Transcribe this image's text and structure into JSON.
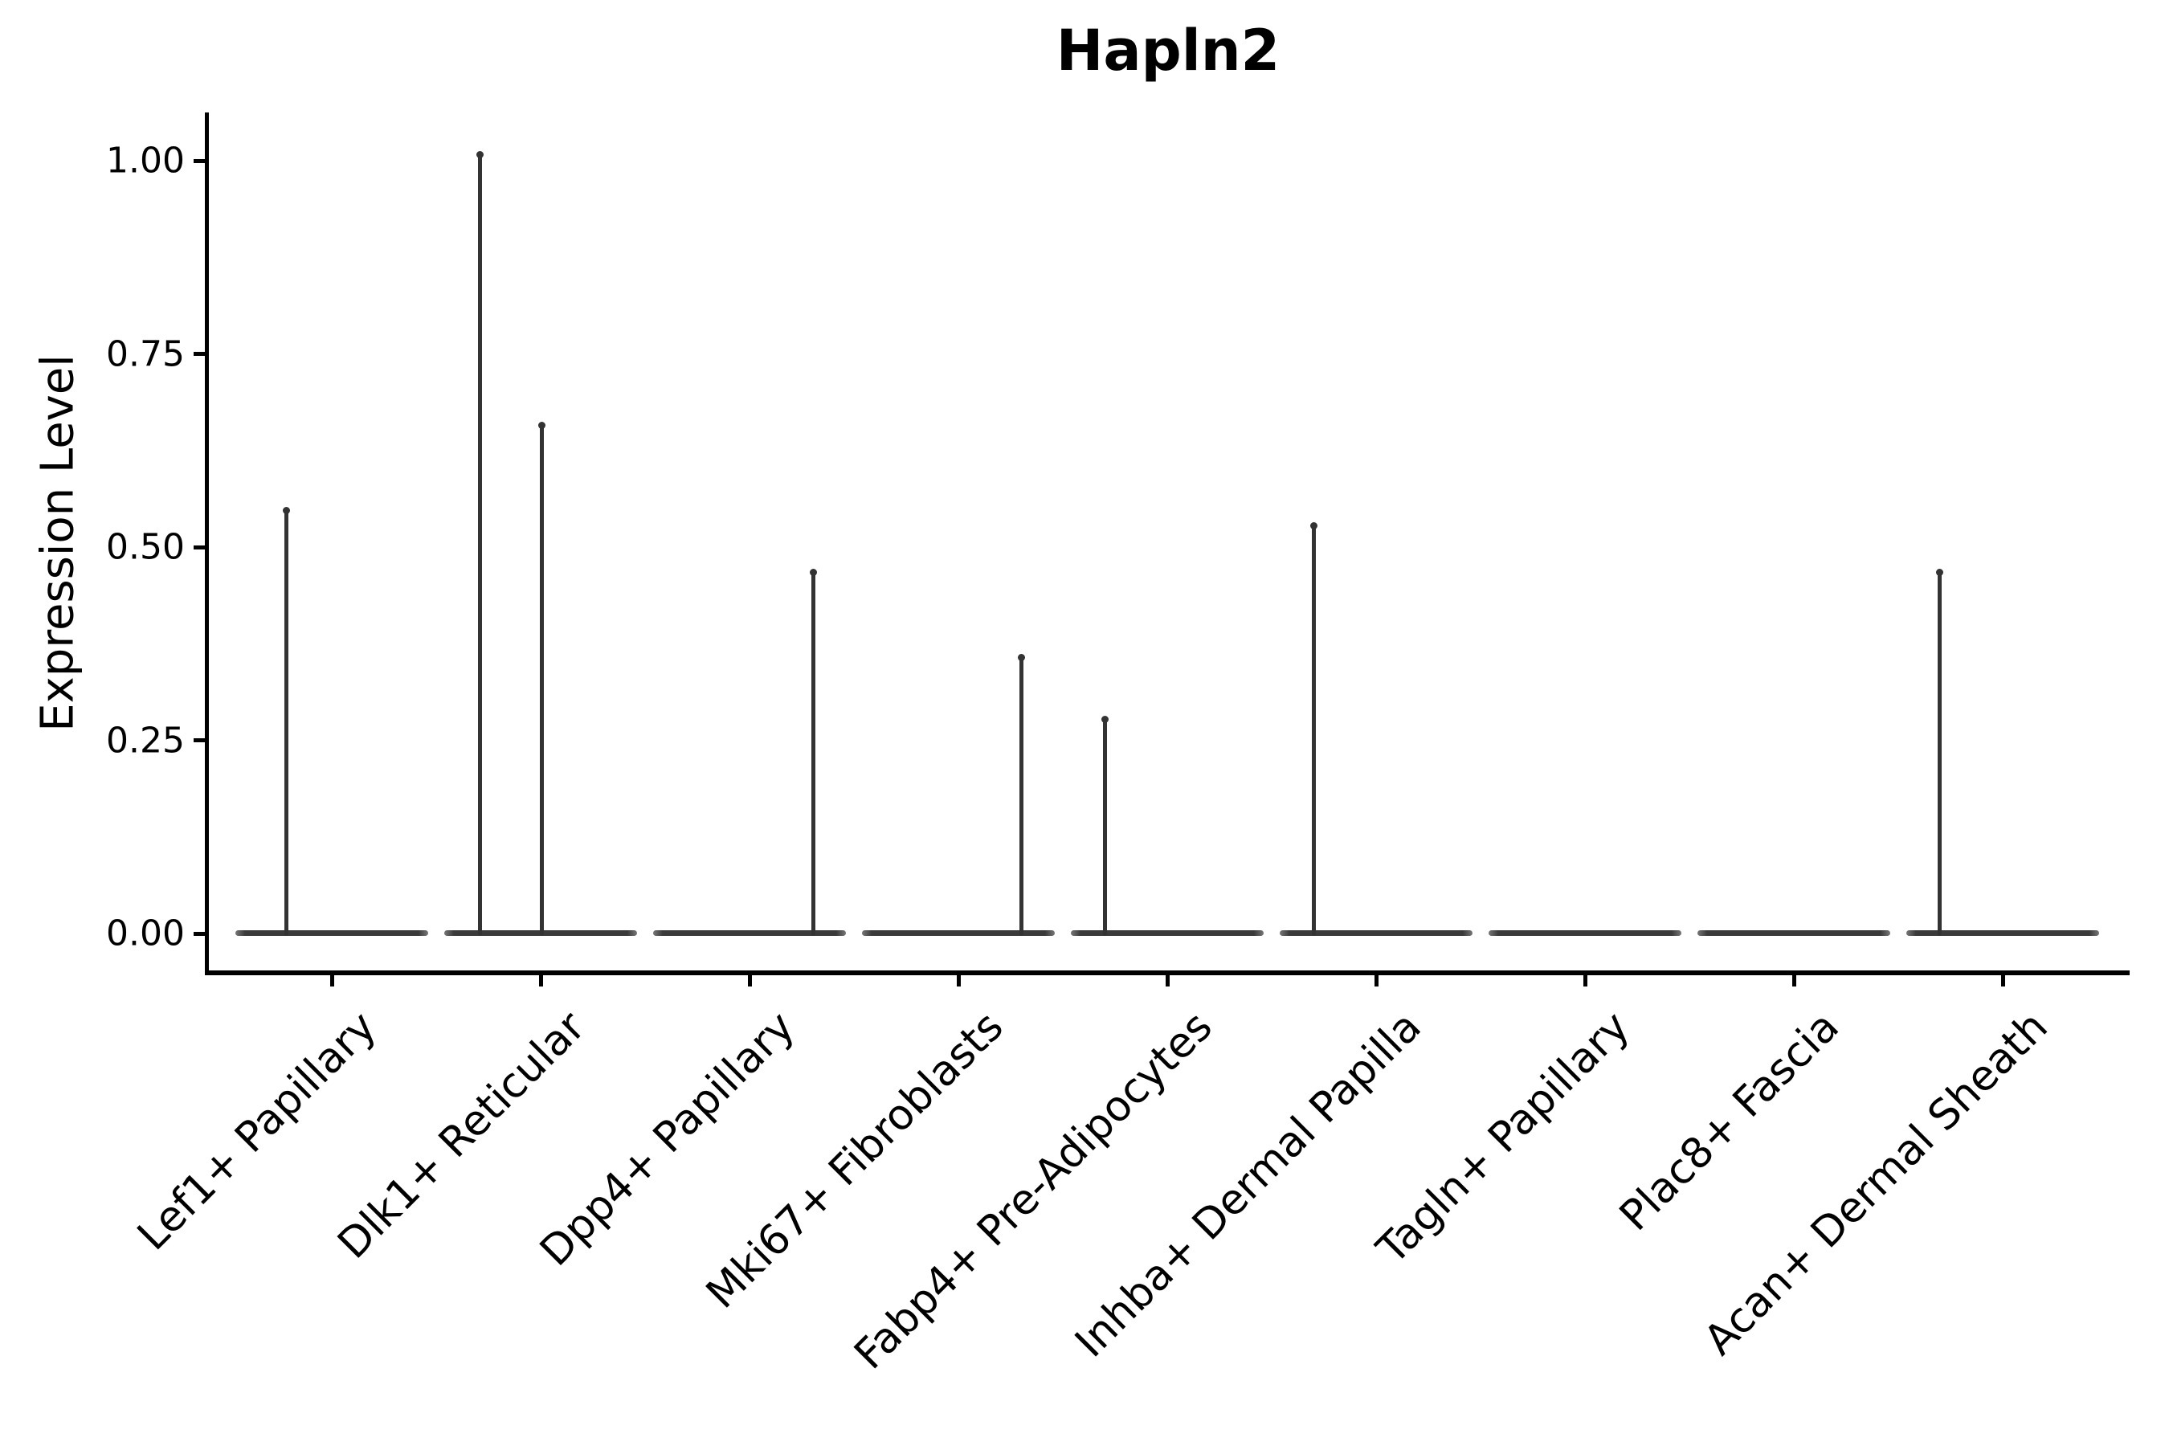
{
  "title": "Hapln2",
  "axes": {
    "y_label": "Expression Level",
    "y_ticks": [
      {
        "label": "0.00",
        "value": 0.0
      },
      {
        "label": "0.25",
        "value": 0.25
      },
      {
        "label": "0.50",
        "value": 0.5
      },
      {
        "label": "0.75",
        "value": 0.75
      },
      {
        "label": "1.00",
        "value": 1.0
      }
    ]
  },
  "chart_data": {
    "type": "violin",
    "title": "Hapln2",
    "xlabel": "",
    "ylabel": "Expression Level",
    "ylim": [
      0,
      1.06
    ],
    "grid": false,
    "legend": "none",
    "categories": [
      "Lef1+ Papillary",
      "Dlk1+ Reticular",
      "Dpp4+ Papillary",
      "Mki67+ Fibroblasts",
      "Fabp4+ Pre-Adipocytes",
      "Inhba+ Dermal Papilla",
      "Tagln+ Papillary",
      "Plac8+ Fascia",
      "Acan+ Dermal Sheath"
    ],
    "max_values": [
      0.55,
      1.01,
      0.47,
      0.36,
      0.28,
      0.53,
      0,
      0,
      0.47
    ],
    "violins": [
      {
        "category": "Lef1+ Papillary",
        "max": 0.55,
        "spikes": [
          {
            "value": 0.55,
            "x_offset": -57
          }
        ]
      },
      {
        "category": "Dlk1+ Reticular",
        "max": 1.01,
        "spikes": [
          {
            "value": 1.01,
            "x_offset": -76
          },
          {
            "value": 0.66,
            "x_offset": 1
          }
        ]
      },
      {
        "category": "Dpp4+ Papillary",
        "max": 0.47,
        "spikes": [
          {
            "value": 0.47,
            "x_offset": 79
          }
        ]
      },
      {
        "category": "Mki67+ Fibroblasts",
        "max": 0.36,
        "spikes": [
          {
            "value": 0.36,
            "x_offset": 78
          }
        ]
      },
      {
        "category": "Fabp4+ Pre-Adipocytes",
        "max": 0.28,
        "spikes": [
          {
            "value": 0.28,
            "x_offset": -78
          }
        ]
      },
      {
        "category": "Inhba+ Dermal Papilla",
        "max": 0.53,
        "spikes": [
          {
            "value": 0.53,
            "x_offset": -78
          }
        ]
      },
      {
        "category": "Tagln+ Papillary",
        "max": 0.0,
        "spikes": []
      },
      {
        "category": "Plac8+ Fascia",
        "max": 0.0,
        "spikes": []
      },
      {
        "category": "Acan+ Dermal Sheath",
        "max": 0.47,
        "spikes": [
          {
            "value": 0.47,
            "x_offset": -79
          }
        ]
      }
    ],
    "colors": {
      "violin": "#3a3a3a",
      "spike": "#333333",
      "axis": "#000000",
      "text": "#000000",
      "background": "#ffffff"
    }
  }
}
